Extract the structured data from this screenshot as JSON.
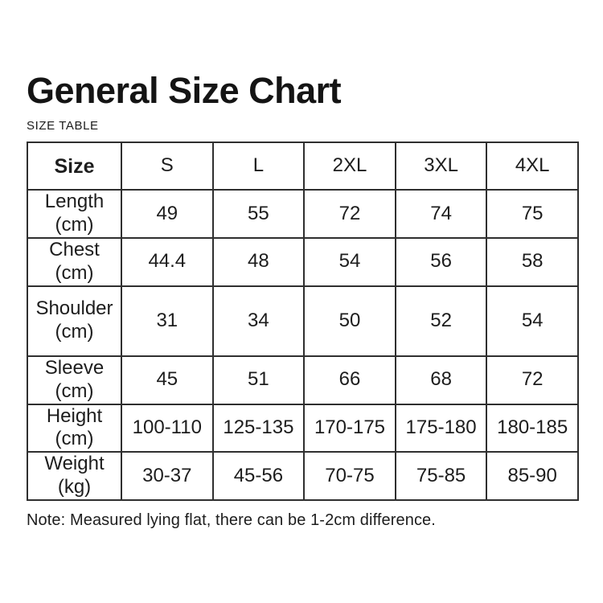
{
  "page": {
    "title": "General Size Chart",
    "subtitle": "SIZE TABLE",
    "note": "Note: Measured lying flat, there can be 1-2cm difference."
  },
  "chart_data": {
    "type": "table",
    "title": "General Size Chart",
    "columns": [
      "Size",
      "S",
      "L",
      "2XL",
      "3XL",
      "4XL"
    ],
    "rows": [
      {
        "name": "Length",
        "unit": "(cm)",
        "values": [
          "49",
          "55",
          "72",
          "74",
          "75"
        ]
      },
      {
        "name": "Chest",
        "unit": "(cm)",
        "values": [
          "44.4",
          "48",
          "54",
          "56",
          "58"
        ]
      },
      {
        "name": "Shoulder",
        "unit": "(cm)",
        "values": [
          "31",
          "34",
          "50",
          "52",
          "54"
        ]
      },
      {
        "name": "Sleeve",
        "unit": "(cm)",
        "values": [
          "45",
          "51",
          "66",
          "68",
          "72"
        ]
      },
      {
        "name": "Height",
        "unit": "(cm)",
        "values": [
          "100-110",
          "125-135",
          "170-175",
          "175-180",
          "180-185"
        ]
      },
      {
        "name": "Weight",
        "unit": "(kg)",
        "values": [
          "30-37",
          "45-56",
          "70-75",
          "75-85",
          "85-90"
        ]
      }
    ]
  },
  "colors": {
    "background": "#ffffff",
    "text": "#1a1a1a",
    "border": "#2f2f2f"
  }
}
